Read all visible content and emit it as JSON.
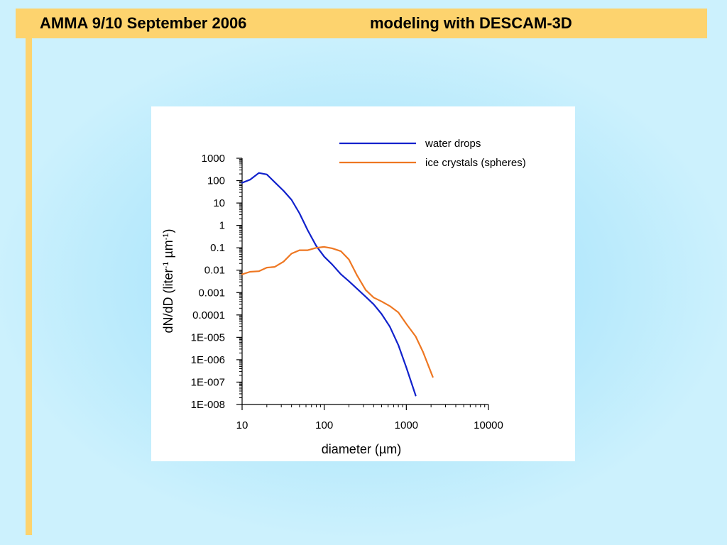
{
  "slide": {
    "title_left": "AMMA 9/10 September 2006",
    "title_right": "modeling with DESCAM-3D",
    "colors": {
      "title_bar": "#fdd36e",
      "background": "#b4e8fc"
    }
  },
  "chart_data": {
    "type": "line",
    "xlabel": "diameter (µm)",
    "ylabel": {
      "prefix": "dN/dD (liter",
      "sup1": "-1",
      "mid": " µm",
      "sup2": "-1",
      "suffix": ")"
    },
    "x_scale": "log",
    "y_scale": "log",
    "xlim": [
      10,
      10000
    ],
    "ylim": [
      1e-08,
      1000
    ],
    "x_ticks": [
      {
        "value": 10,
        "label": "10"
      },
      {
        "value": 100,
        "label": "100"
      },
      {
        "value": 1000,
        "label": "1000"
      },
      {
        "value": 10000,
        "label": "10000"
      }
    ],
    "y_ticks": [
      {
        "value": 1000,
        "label": "1000"
      },
      {
        "value": 100,
        "label": "100"
      },
      {
        "value": 10,
        "label": "10"
      },
      {
        "value": 1,
        "label": "1"
      },
      {
        "value": 0.1,
        "label": "0.1"
      },
      {
        "value": 0.01,
        "label": "0.01"
      },
      {
        "value": 0.001,
        "label": "0.001"
      },
      {
        "value": 0.0001,
        "label": "0.0001"
      },
      {
        "value": 1e-05,
        "label": "1E-005"
      },
      {
        "value": 1e-06,
        "label": "1E-006"
      },
      {
        "value": 1e-07,
        "label": "1E-007"
      },
      {
        "value": 1e-08,
        "label": "1E-008"
      }
    ],
    "legend_position": "top-right",
    "grid": false,
    "series": [
      {
        "name": "water drops",
        "color": "#1122cc",
        "points": [
          [
            10,
            80
          ],
          [
            12.5,
            110
          ],
          [
            16,
            220
          ],
          [
            20,
            190
          ],
          [
            25,
            85
          ],
          [
            32,
            35
          ],
          [
            40,
            14
          ],
          [
            50,
            3.5
          ],
          [
            63,
            0.6
          ],
          [
            80,
            0.12
          ],
          [
            100,
            0.04
          ],
          [
            125,
            0.018
          ],
          [
            160,
            0.0065
          ],
          [
            200,
            0.0032
          ],
          [
            250,
            0.0015
          ],
          [
            320,
            0.00065
          ],
          [
            400,
            0.0003
          ],
          [
            500,
            0.00011
          ],
          [
            630,
            3e-05
          ],
          [
            800,
            4.5e-06
          ],
          [
            1000,
            4.5e-07
          ],
          [
            1300,
            2.5e-08
          ]
        ]
      },
      {
        "name": "ice crystals (spheres)",
        "color": "#ee7722",
        "points": [
          [
            10,
            0.0065
          ],
          [
            12.5,
            0.0085
          ],
          [
            16,
            0.009
          ],
          [
            20,
            0.013
          ],
          [
            25,
            0.014
          ],
          [
            32,
            0.024
          ],
          [
            40,
            0.055
          ],
          [
            50,
            0.078
          ],
          [
            63,
            0.078
          ],
          [
            80,
            0.1
          ],
          [
            100,
            0.11
          ],
          [
            125,
            0.095
          ],
          [
            160,
            0.07
          ],
          [
            200,
            0.03
          ],
          [
            250,
            0.006
          ],
          [
            320,
            0.0013
          ],
          [
            400,
            0.0006
          ],
          [
            500,
            0.0004
          ],
          [
            630,
            0.00025
          ],
          [
            800,
            0.00013
          ],
          [
            1000,
            4e-05
          ],
          [
            1300,
            1.1e-05
          ],
          [
            1600,
            2.2e-06
          ],
          [
            2100,
            1.7e-07
          ]
        ]
      }
    ]
  }
}
